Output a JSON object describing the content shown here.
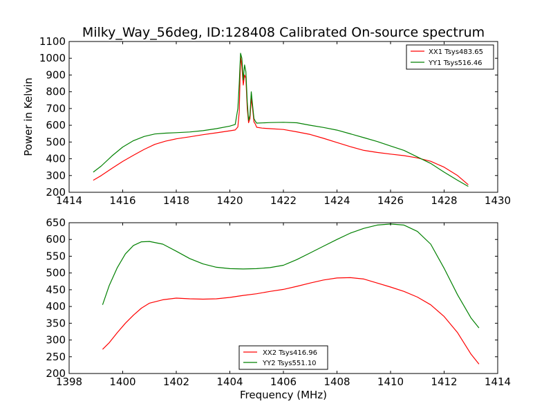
{
  "colors": {
    "xx": "#ff0000",
    "yy": "#008000",
    "axes": "#000000",
    "background": "#ffffff"
  },
  "chart_data": [
    {
      "type": "line",
      "title": "Milky_Way_56deg, ID:128408 Calibrated On-source spectrum",
      "xlabel": "",
      "ylabel": "Power in Kelvin",
      "xlim": [
        1414,
        1430
      ],
      "ylim": [
        200,
        1100
      ],
      "xticks": [
        "1414",
        "1416",
        "1418",
        "1420",
        "1422",
        "1424",
        "1426",
        "1428",
        "1430"
      ],
      "yticks": [
        "200",
        "300",
        "400",
        "500",
        "600",
        "700",
        "800",
        "900",
        "1000",
        "1100"
      ],
      "grid": false,
      "legend_position": "top-right",
      "series": [
        {
          "name": "XX1 Tsys483.65",
          "color": "#ff0000",
          "x": [
            1414.9,
            1415.2,
            1415.6,
            1416.0,
            1416.4,
            1416.8,
            1417.2,
            1417.6,
            1418.0,
            1418.5,
            1419.0,
            1419.5,
            1420.0,
            1420.2,
            1420.3,
            1420.35,
            1420.4,
            1420.45,
            1420.5,
            1420.55,
            1420.6,
            1420.65,
            1420.7,
            1420.75,
            1420.8,
            1420.85,
            1420.9,
            1420.95,
            1421.0,
            1421.2,
            1421.5,
            1422.0,
            1422.5,
            1423.0,
            1423.5,
            1424.0,
            1424.5,
            1425.0,
            1425.5,
            1426.0,
            1426.5,
            1427.0,
            1427.5,
            1428.0,
            1428.5,
            1428.9
          ],
          "y": [
            272,
            300,
            343,
            384,
            421,
            456,
            486,
            505,
            519,
            531,
            544,
            555,
            567,
            572,
            590,
            680,
            1010,
            950,
            840,
            900,
            880,
            700,
            615,
            640,
            760,
            700,
            620,
            608,
            588,
            583,
            580,
            575,
            561,
            545,
            522,
            497,
            472,
            450,
            438,
            428,
            419,
            405,
            385,
            350,
            300,
            245
          ]
        },
        {
          "name": "YY1 Tsys516.46",
          "color": "#008000",
          "x": [
            1414.9,
            1415.2,
            1415.6,
            1416.0,
            1416.4,
            1416.8,
            1417.2,
            1417.6,
            1418.0,
            1418.5,
            1419.0,
            1419.5,
            1420.0,
            1420.2,
            1420.3,
            1420.35,
            1420.4,
            1420.45,
            1420.5,
            1420.55,
            1420.6,
            1420.65,
            1420.7,
            1420.75,
            1420.8,
            1420.85,
            1420.9,
            1420.95,
            1421.0,
            1421.5,
            1422.0,
            1422.5,
            1423.0,
            1423.5,
            1424.0,
            1424.5,
            1425.0,
            1425.5,
            1426.0,
            1426.5,
            1427.0,
            1427.5,
            1428.0,
            1428.5,
            1428.9
          ],
          "y": [
            320,
            357,
            417,
            470,
            508,
            533,
            548,
            553,
            556,
            560,
            568,
            580,
            595,
            605,
            700,
            850,
            1030,
            1000,
            870,
            960,
            920,
            740,
            630,
            660,
            800,
            720,
            640,
            625,
            613,
            616,
            618,
            615,
            600,
            587,
            571,
            549,
            526,
            503,
            476,
            450,
            411,
            372,
            320,
            272,
            235
          ]
        }
      ]
    },
    {
      "type": "line",
      "title": "",
      "xlabel": "Frequency (MHz)",
      "ylabel": "",
      "xlim": [
        1398,
        1414
      ],
      "ylim": [
        200,
        650
      ],
      "xticks": [
        "1398",
        "1400",
        "1402",
        "1404",
        "1406",
        "1408",
        "1410",
        "1412",
        "1414"
      ],
      "yticks": [
        "200",
        "250",
        "300",
        "350",
        "400",
        "450",
        "500",
        "550",
        "600",
        "650"
      ],
      "grid": false,
      "legend_position": "bottom-center",
      "series": [
        {
          "name": "XX2 Tsys416.96",
          "color": "#ff0000",
          "x": [
            1399.25,
            1399.5,
            1399.8,
            1400.1,
            1400.4,
            1400.7,
            1401.0,
            1401.5,
            1402.0,
            1402.5,
            1403.0,
            1403.5,
            1404.0,
            1404.5,
            1405.0,
            1405.5,
            1406.0,
            1406.5,
            1407.0,
            1407.5,
            1408.0,
            1408.5,
            1409.0,
            1409.5,
            1410.0,
            1410.5,
            1411.0,
            1411.5,
            1412.0,
            1412.5,
            1413.0,
            1413.3
          ],
          "y": [
            272,
            292,
            322,
            350,
            374,
            395,
            410,
            420,
            425,
            423,
            422,
            423,
            427,
            433,
            438,
            445,
            451,
            460,
            470,
            479,
            485,
            486,
            482,
            470,
            458,
            445,
            428,
            405,
            370,
            322,
            258,
            228
          ]
        },
        {
          "name": "YY2 Tsys551.10",
          "color": "#008000",
          "x": [
            1399.25,
            1399.5,
            1399.8,
            1400.1,
            1400.4,
            1400.7,
            1401.0,
            1401.5,
            1402.0,
            1402.5,
            1403.0,
            1403.5,
            1404.0,
            1404.5,
            1405.0,
            1405.5,
            1406.0,
            1406.5,
            1407.0,
            1407.5,
            1408.0,
            1408.5,
            1409.0,
            1409.5,
            1410.0,
            1410.5,
            1411.0,
            1411.5,
            1412.0,
            1412.5,
            1413.0,
            1413.3
          ],
          "y": [
            405,
            463,
            516,
            557,
            582,
            593,
            594,
            586,
            565,
            543,
            527,
            517,
            513,
            512,
            513,
            516,
            523,
            540,
            560,
            580,
            600,
            619,
            633,
            643,
            646,
            643,
            624,
            586,
            514,
            435,
            366,
            336
          ]
        }
      ]
    }
  ]
}
